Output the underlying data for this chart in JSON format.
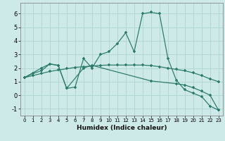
{
  "xlabel": "Humidex (Indice chaleur)",
  "background_color": "#ceeae8",
  "grid_color": "#aed4d0",
  "line_color": "#2d7d6e",
  "x_min": -0.5,
  "x_max": 23.5,
  "y_min": -1.5,
  "y_max": 6.8,
  "yticks": [
    -1,
    0,
    1,
    2,
    3,
    4,
    5,
    6
  ],
  "xticks": [
    0,
    1,
    2,
    3,
    4,
    5,
    6,
    7,
    8,
    9,
    10,
    11,
    12,
    13,
    14,
    15,
    16,
    17,
    18,
    19,
    20,
    21,
    22,
    23
  ],
  "line1_x": [
    0,
    1,
    2,
    3,
    4,
    5,
    6,
    7,
    8,
    9,
    10,
    11,
    12,
    13,
    14,
    15,
    16,
    17,
    18,
    19,
    20,
    21,
    22,
    23
  ],
  "line1_y": [
    1.3,
    1.6,
    1.8,
    2.3,
    2.2,
    0.5,
    0.6,
    2.7,
    2.0,
    3.0,
    3.2,
    3.8,
    4.6,
    3.2,
    6.0,
    6.1,
    6.0,
    2.7,
    1.1,
    0.4,
    0.15,
    -0.1,
    -0.8,
    -1.1
  ],
  "line2_x": [
    0,
    2,
    3,
    4,
    5,
    7,
    8,
    15,
    18,
    19,
    20,
    21,
    22,
    23
  ],
  "line2_y": [
    1.3,
    2.0,
    2.3,
    2.2,
    0.5,
    2.0,
    2.2,
    1.05,
    0.85,
    0.75,
    0.55,
    0.3,
    0.0,
    -1.1
  ],
  "line3_x": [
    0,
    1,
    2,
    3,
    4,
    5,
    6,
    7,
    8,
    9,
    10,
    11,
    12,
    13,
    14,
    15,
    16,
    17,
    18,
    19,
    20,
    21,
    22,
    23
  ],
  "line3_y": [
    1.3,
    1.45,
    1.6,
    1.75,
    1.85,
    1.95,
    2.05,
    2.1,
    2.15,
    2.2,
    2.22,
    2.22,
    2.22,
    2.22,
    2.22,
    2.18,
    2.1,
    2.0,
    1.9,
    1.8,
    1.65,
    1.45,
    1.2,
    1.0
  ]
}
